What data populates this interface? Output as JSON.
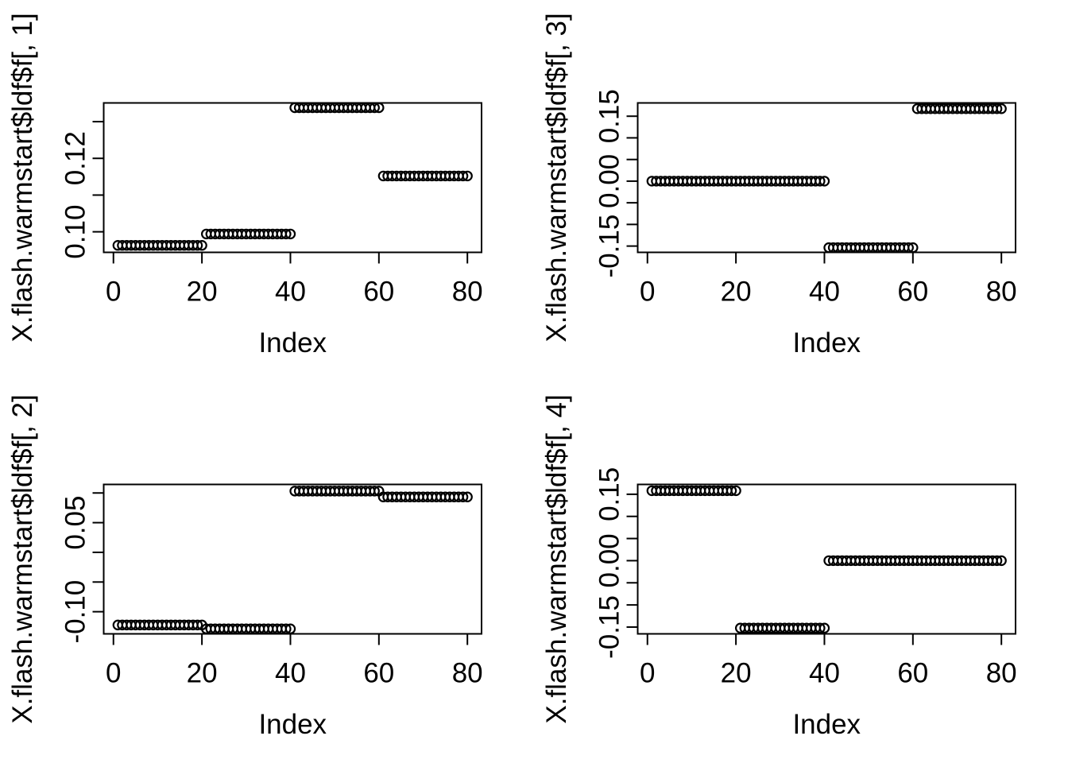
{
  "figure": {
    "background_color": "#FFFFFF",
    "foreground_color": "#000000",
    "marker": "open-circle"
  },
  "chart_data": [
    {
      "type": "scatter",
      "title": "",
      "xlabel": "Index",
      "ylabel": "X.flash.warmstart$ldf$f[, 1]",
      "xlim": [
        -2.2,
        83.2
      ],
      "ylim": [
        0.0944,
        0.1351
      ],
      "grid": "off",
      "legend": "none",
      "xticks": [
        {
          "value": 0,
          "label": "0"
        },
        {
          "value": 20,
          "label": "20"
        },
        {
          "value": 40,
          "label": "40"
        },
        {
          "value": 60,
          "label": "60"
        },
        {
          "value": 80,
          "label": "80"
        }
      ],
      "yticks": [
        {
          "value": 0.1,
          "label": "0.10"
        },
        {
          "value": 0.11,
          "label": ""
        },
        {
          "value": 0.12,
          "label": "0.12"
        },
        {
          "value": 0.13,
          "label": ""
        }
      ],
      "segments": [
        {
          "from_index": 1,
          "to_index": 20,
          "value": 0.0963
        },
        {
          "from_index": 21,
          "to_index": 40,
          "value": 0.0994
        },
        {
          "from_index": 41,
          "to_index": 60,
          "value": 0.1338
        },
        {
          "from_index": 61,
          "to_index": 80,
          "value": 0.1152
        }
      ]
    },
    {
      "type": "scatter",
      "title": "",
      "xlabel": "Index",
      "ylabel": "X.flash.warmstart$ldf$f[, 3]",
      "xlim": [
        -2.2,
        83.2
      ],
      "ylim": [
        -0.1645,
        0.1807
      ],
      "grid": "off",
      "legend": "none",
      "xticks": [
        {
          "value": 0,
          "label": "0"
        },
        {
          "value": 20,
          "label": "20"
        },
        {
          "value": 40,
          "label": "40"
        },
        {
          "value": 60,
          "label": "60"
        },
        {
          "value": 80,
          "label": "80"
        }
      ],
      "yticks": [
        {
          "value": 0.15,
          "label": "0.15"
        },
        {
          "value": 0.1,
          "label": ""
        },
        {
          "value": 0.05,
          "label": ""
        },
        {
          "value": 0.0,
          "label": "0.00"
        },
        {
          "value": -0.05,
          "label": ""
        },
        {
          "value": -0.1,
          "label": ""
        },
        {
          "value": -0.15,
          "label": "-0.15"
        }
      ],
      "segments": [
        {
          "from_index": 1,
          "to_index": 40,
          "value": 0.0
        },
        {
          "from_index": 41,
          "to_index": 60,
          "value": -0.1537
        },
        {
          "from_index": 61,
          "to_index": 80,
          "value": 0.1673
        }
      ]
    },
    {
      "type": "scatter",
      "title": "",
      "xlabel": "Index",
      "ylabel": "X.flash.warmstart$ldf$f[, 2]",
      "xlim": [
        -2.2,
        83.2
      ],
      "ylim": [
        -0.1373,
        0.1144
      ],
      "grid": "off",
      "legend": "none",
      "xticks": [
        {
          "value": 0,
          "label": "0"
        },
        {
          "value": 20,
          "label": "20"
        },
        {
          "value": 40,
          "label": "40"
        },
        {
          "value": 60,
          "label": "60"
        },
        {
          "value": 80,
          "label": "80"
        }
      ],
      "yticks": [
        {
          "value": 0.1,
          "label": ""
        },
        {
          "value": 0.05,
          "label": "0.05"
        },
        {
          "value": 0.0,
          "label": ""
        },
        {
          "value": -0.05,
          "label": ""
        },
        {
          "value": -0.1,
          "label": "-0.10"
        }
      ],
      "segments": [
        {
          "from_index": 1,
          "to_index": 20,
          "value": -0.1224
        },
        {
          "from_index": 21,
          "to_index": 40,
          "value": -0.1289
        },
        {
          "from_index": 41,
          "to_index": 60,
          "value": 0.1032
        },
        {
          "from_index": 61,
          "to_index": 80,
          "value": 0.0933
        }
      ]
    },
    {
      "type": "scatter",
      "title": "",
      "xlabel": "Index",
      "ylabel": "X.flash.warmstart$ldf$f[, 4]",
      "xlim": [
        -2.2,
        83.2
      ],
      "ylim": [
        -0.1653,
        0.1722
      ],
      "grid": "off",
      "legend": "none",
      "xticks": [
        {
          "value": 0,
          "label": "0"
        },
        {
          "value": 20,
          "label": "20"
        },
        {
          "value": 40,
          "label": "40"
        },
        {
          "value": 60,
          "label": "60"
        },
        {
          "value": 80,
          "label": "80"
        }
      ],
      "yticks": [
        {
          "value": 0.15,
          "label": "0.15"
        },
        {
          "value": 0.1,
          "label": ""
        },
        {
          "value": 0.05,
          "label": ""
        },
        {
          "value": 0.0,
          "label": "0.00"
        },
        {
          "value": -0.05,
          "label": ""
        },
        {
          "value": -0.1,
          "label": ""
        },
        {
          "value": -0.15,
          "label": "-0.15"
        }
      ],
      "segments": [
        {
          "from_index": 1,
          "to_index": 20,
          "value": 0.158
        },
        {
          "from_index": 21,
          "to_index": 40,
          "value": -0.1523
        },
        {
          "from_index": 41,
          "to_index": 80,
          "value": 0.0
        }
      ]
    }
  ]
}
